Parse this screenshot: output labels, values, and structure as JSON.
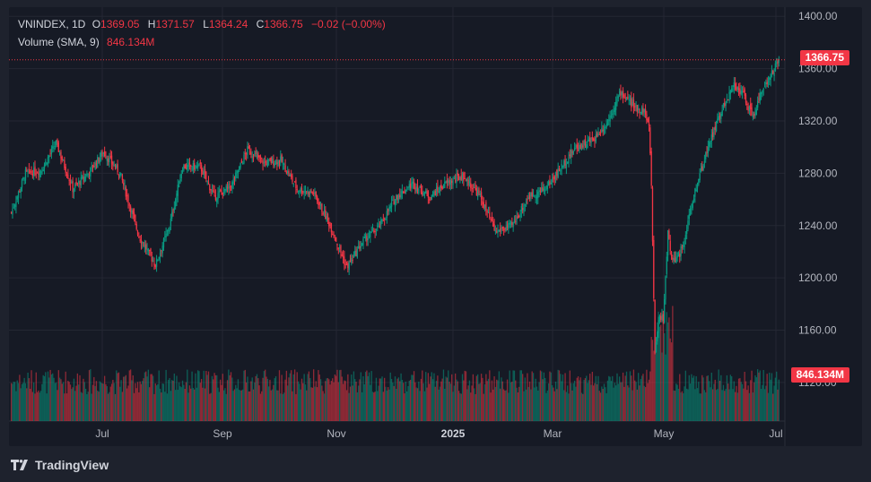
{
  "header": {
    "symbol": "VNINDEX, 1D",
    "open_label": "O",
    "open": "1369.05",
    "high_label": "H",
    "high": "1371.57",
    "low_label": "L",
    "low": "1364.24",
    "close_label": "C",
    "close": "1366.75",
    "change": "−0.02 (−0.00%)",
    "volume_label": "Volume (SMA, 9)",
    "volume_value": "846.134M"
  },
  "price_tag": "1366.75",
  "volume_tag": "846.134M",
  "brand": "TradingView",
  "colors": {
    "up": "#089981",
    "down": "#f23645",
    "background": "#161a25",
    "grid": "#242733",
    "text": "#b2b5be"
  },
  "chart_data": {
    "type": "candlestick",
    "title": "VNINDEX, 1D",
    "y_ticks": [
      "1120.00",
      "1160.00",
      "1200.00",
      "1240.00",
      "1280.00",
      "1320.00",
      "1360.00",
      "1400.00"
    ],
    "x_ticks": [
      "Jul",
      "Sep",
      "Nov",
      "2025",
      "Mar",
      "May",
      "Jul"
    ],
    "ylim": [
      1085,
      1407
    ],
    "last_close": 1366.75,
    "grid": "on",
    "series": [
      {
        "name": "VNINDEX",
        "approx_close_path": [
          [
            0,
            1250
          ],
          [
            12,
            1280
          ],
          [
            25,
            1282
          ],
          [
            38,
            1303
          ],
          [
            52,
            1268
          ],
          [
            65,
            1280
          ],
          [
            78,
            1296
          ],
          [
            92,
            1280
          ],
          [
            108,
            1232
          ],
          [
            122,
            1210
          ],
          [
            134,
            1240
          ],
          [
            145,
            1285
          ],
          [
            160,
            1285
          ],
          [
            172,
            1262
          ],
          [
            186,
            1270
          ],
          [
            200,
            1298
          ],
          [
            214,
            1288
          ],
          [
            228,
            1290
          ],
          [
            242,
            1268
          ],
          [
            256,
            1265
          ],
          [
            270,
            1240
          ],
          [
            284,
            1208
          ],
          [
            298,
            1228
          ],
          [
            312,
            1240
          ],
          [
            326,
            1262
          ],
          [
            340,
            1272
          ],
          [
            354,
            1262
          ],
          [
            368,
            1272
          ],
          [
            382,
            1278
          ],
          [
            396,
            1264
          ],
          [
            410,
            1235
          ],
          [
            424,
            1240
          ],
          [
            438,
            1262
          ],
          [
            452,
            1268
          ],
          [
            466,
            1285
          ],
          [
            478,
            1300
          ],
          [
            492,
            1305
          ],
          [
            504,
            1318
          ],
          [
            516,
            1342
          ],
          [
            528,
            1330
          ],
          [
            536,
            1328
          ],
          [
            540,
            1315
          ],
          [
            542,
            1272
          ],
          [
            545,
            1140
          ],
          [
            548,
            1168
          ],
          [
            552,
            1170
          ],
          [
            556,
            1235
          ],
          [
            560,
            1212
          ],
          [
            566,
            1218
          ],
          [
            572,
            1238
          ],
          [
            580,
            1270
          ],
          [
            590,
            1300
          ],
          [
            600,
            1325
          ],
          [
            612,
            1348
          ],
          [
            620,
            1340
          ],
          [
            628,
            1322
          ],
          [
            636,
            1345
          ],
          [
            644,
            1356
          ],
          [
            650,
            1367
          ]
        ]
      }
    ],
    "volume": {
      "name": "Volume (SMA, 9)",
      "last_sma": "846.134M"
    }
  }
}
